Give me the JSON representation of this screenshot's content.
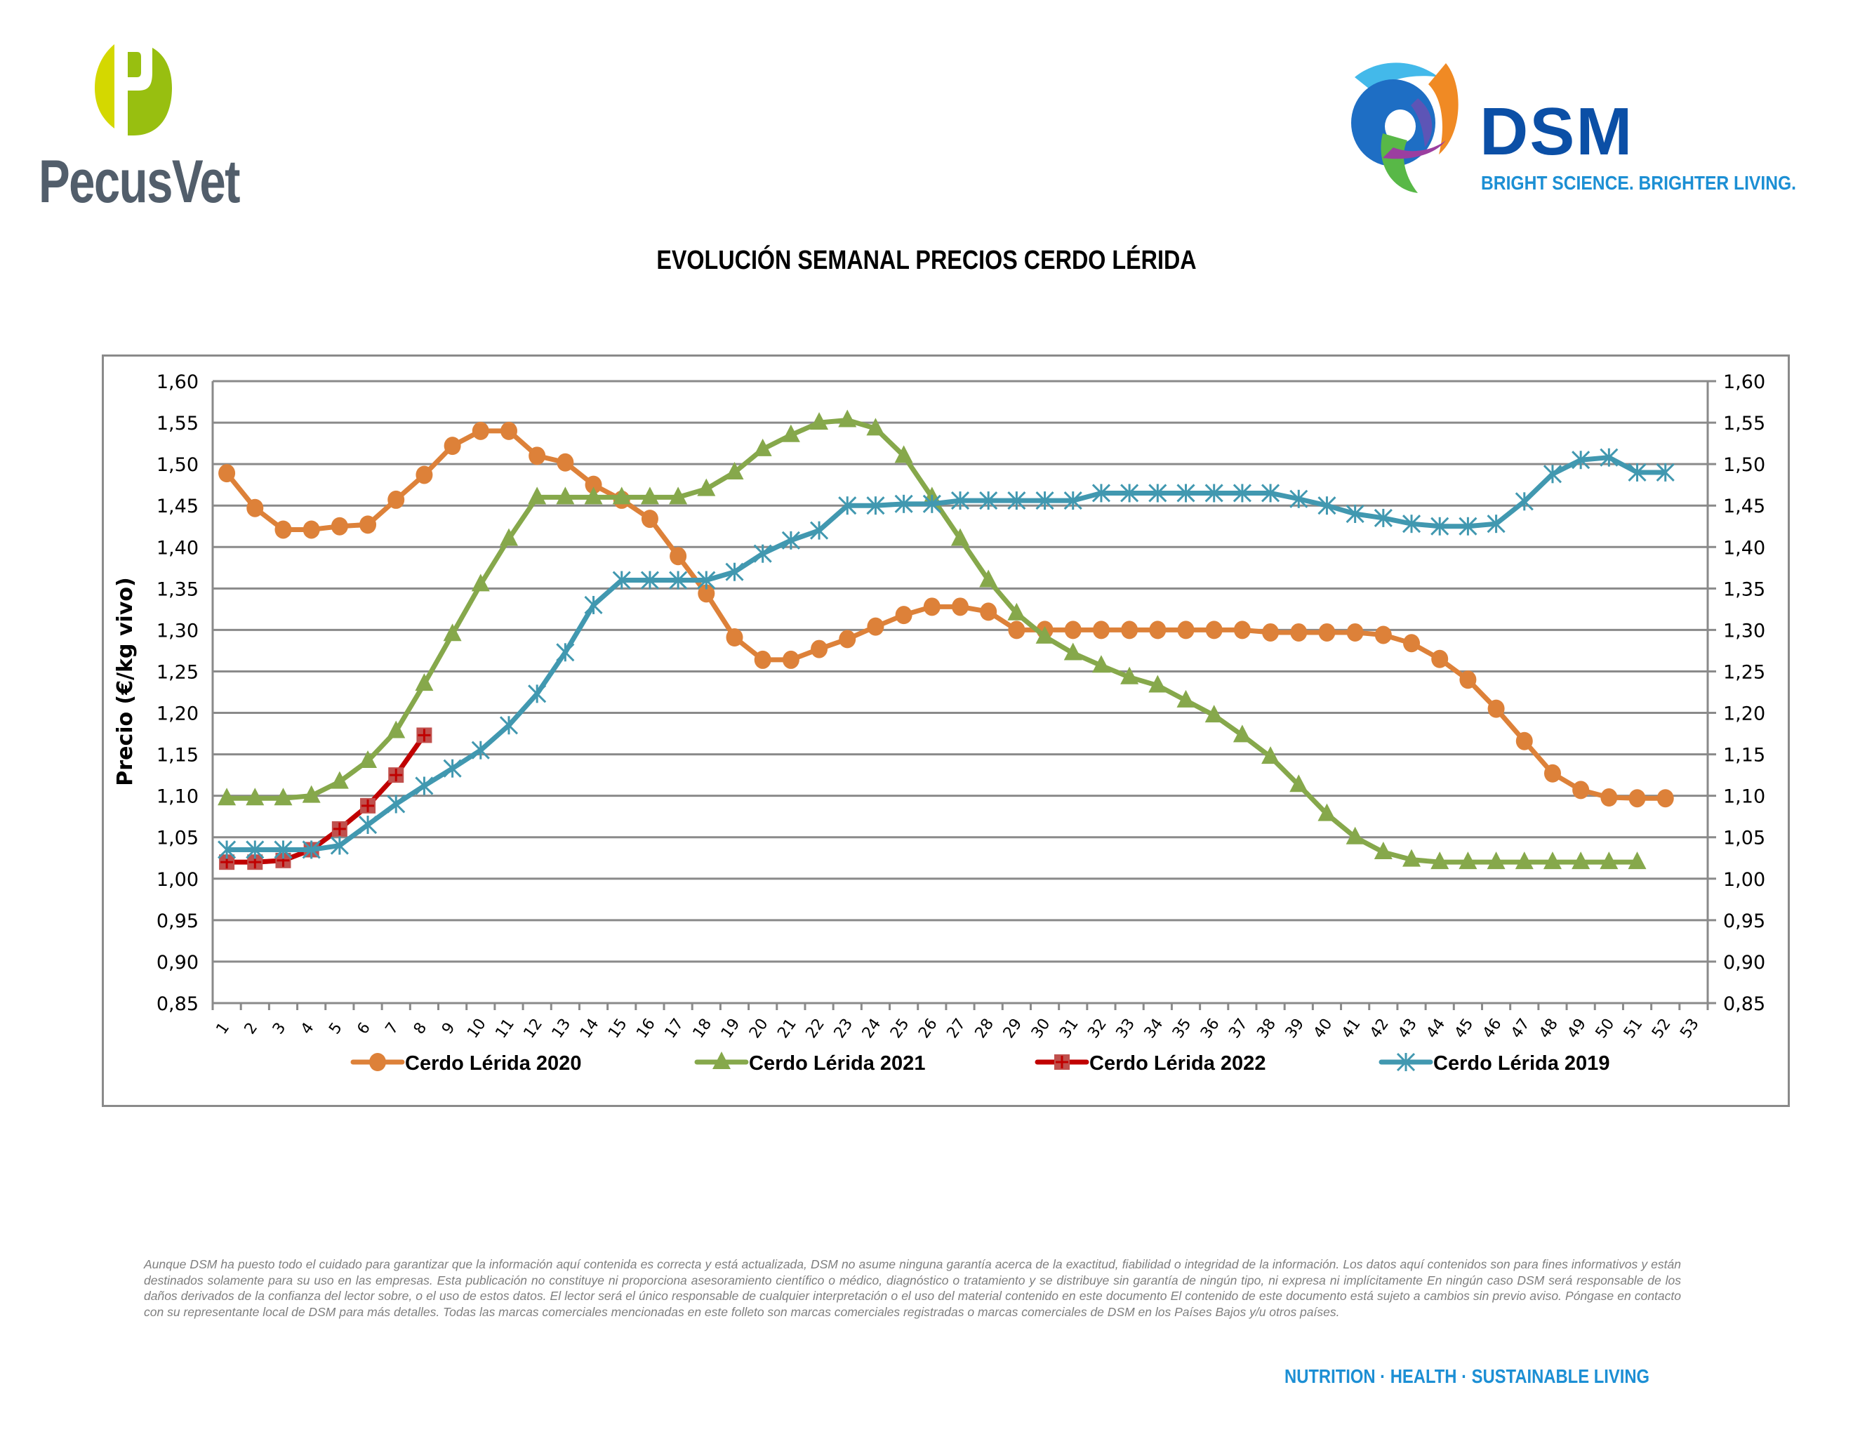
{
  "header": {
    "left_logo": {
      "name": "PecusVet",
      "icon": "pecusvet-p-logo-icon",
      "colors": {
        "light": "#d4d800",
        "dark": "#98bf10",
        "text": "#525e6b"
      }
    },
    "right_logo": {
      "name": "DSM",
      "tagline": "BRIGHT SCIENCE. BRIGHTER LIVING.",
      "icon": "dsm-swirl-logo-icon",
      "colors": {
        "word": "#0b4fa6",
        "tagline": "#1c8fd4"
      }
    }
  },
  "page_title": "EVOLUCIÓN SEMANAL PRECIOS CERDO LÉRIDA",
  "chart_data": {
    "type": "line",
    "title": "EVOLUCIÓN SEMANAL PRECIOS CERDO LÉRIDA",
    "xlabel": "",
    "ylabel": "Precio (€/kg vivo)",
    "ylim": [
      0.85,
      1.6
    ],
    "ytick_step": 0.05,
    "y_tick_labels": [
      "1,60",
      "1,55",
      "1,50",
      "1,45",
      "1,40",
      "1,35",
      "1,30",
      "1,25",
      "1,20",
      "1,15",
      "1,10",
      "1,05",
      "1,00",
      "0,95",
      "0,90",
      "0,85"
    ],
    "secondary_y_axis": true,
    "categories": [
      "1",
      "2",
      "3",
      "4",
      "5",
      "6",
      "7",
      "8",
      "9",
      "10",
      "11",
      "12",
      "13",
      "14",
      "15",
      "16",
      "17",
      "18",
      "19",
      "20",
      "21",
      "22",
      "23",
      "24",
      "25",
      "26",
      "27",
      "28",
      "29",
      "30",
      "31",
      "32",
      "33",
      "34",
      "35",
      "36",
      "37",
      "38",
      "39",
      "40",
      "41",
      "42",
      "43",
      "44",
      "45",
      "46",
      "47",
      "48",
      "49",
      "50",
      "51",
      "52",
      "53"
    ],
    "grid": "horizontal",
    "legend_position": "bottom",
    "series": [
      {
        "name": "Cerdo Lérida 2020",
        "color": "#dd8139",
        "marker": "circle",
        "values": [
          1.489,
          1.447,
          1.421,
          1.421,
          1.425,
          1.427,
          1.457,
          1.487,
          1.522,
          1.54,
          1.54,
          1.51,
          1.502,
          1.475,
          1.457,
          1.434,
          1.389,
          1.344,
          1.291,
          1.264,
          1.264,
          1.277,
          1.289,
          1.304,
          1.318,
          1.328,
          1.328,
          1.322,
          1.3,
          1.3,
          1.3,
          1.3,
          1.3,
          1.3,
          1.3,
          1.3,
          1.3,
          1.297,
          1.297,
          1.297,
          1.297,
          1.294,
          1.284,
          1.265,
          1.24,
          1.205,
          1.166,
          1.127,
          1.107,
          1.098,
          1.097,
          1.097
        ]
      },
      {
        "name": "Cerdo Lérida 2021",
        "color": "#86a84b",
        "marker": "triangle",
        "values": [
          1.097,
          1.097,
          1.097,
          1.1,
          1.117,
          1.142,
          1.178,
          1.235,
          1.295,
          1.355,
          1.41,
          1.46,
          1.46,
          1.46,
          1.46,
          1.46,
          1.46,
          1.47,
          1.49,
          1.518,
          1.535,
          1.55,
          1.553,
          1.543,
          1.51,
          1.46,
          1.41,
          1.36,
          1.32,
          1.292,
          1.272,
          1.257,
          1.243,
          1.233,
          1.215,
          1.197,
          1.173,
          1.147,
          1.113,
          1.078,
          1.05,
          1.032,
          1.023,
          1.02,
          1.02,
          1.02,
          1.02,
          1.02,
          1.02,
          1.02,
          1.02
        ]
      },
      {
        "name": "Cerdo Lérida 2022",
        "color": "#c00000",
        "marker": "square-plus",
        "marker_fill": "#c0504d",
        "values": [
          1.02,
          1.02,
          1.022,
          1.035,
          1.06,
          1.088,
          1.125,
          1.173
        ]
      },
      {
        "name": "Cerdo Lérida 2019",
        "color": "#4198b0",
        "marker": "asterisk",
        "values": [
          1.035,
          1.035,
          1.035,
          1.035,
          1.04,
          1.065,
          1.09,
          1.112,
          1.133,
          1.155,
          1.185,
          1.223,
          1.273,
          1.33,
          1.36,
          1.36,
          1.36,
          1.36,
          1.37,
          1.392,
          1.408,
          1.42,
          1.45,
          1.45,
          1.452,
          1.452,
          1.456,
          1.456,
          1.456,
          1.456,
          1.456,
          1.465,
          1.465,
          1.465,
          1.465,
          1.465,
          1.465,
          1.465,
          1.458,
          1.45,
          1.44,
          1.435,
          1.428,
          1.425,
          1.425,
          1.428,
          1.455,
          1.488,
          1.505,
          1.508,
          1.49,
          1.49
        ]
      }
    ]
  },
  "disclaimer": "Aunque DSM ha puesto todo el cuidado para garantizar que la información aquí contenida es correcta y está actualizada, DSM no asume ninguna garantía acerca de la exactitud, fiabilidad o integridad de la información. Los datos aquí contenidos son para fines informativos y están destinados solamente para su uso en las empresas. Esta publicación no constituye ni proporciona asesoramiento científico o médico, diagnóstico o tratamiento y se distribuye sin garantía de ningún tipo, ni expresa ni implícitamente En ningún caso DSM será responsable de los daños derivados de la confianza del lector sobre, o el uso de estos datos. El lector será el único responsable de cualquier interpretación o el uso del material contenido en este documento El contenido de este documento está sujeto a cambios sin previo aviso. Póngase en contacto con su representante local de DSM para más detalles. Todas las marcas comerciales mencionadas en este folleto son marcas comerciales registradas o marcas comerciales de DSM en los Países Bajos y/u otros países.",
  "footer_tagline": "NUTRITION  ·  HEALTH  ·  SUSTAINABLE LIVING"
}
